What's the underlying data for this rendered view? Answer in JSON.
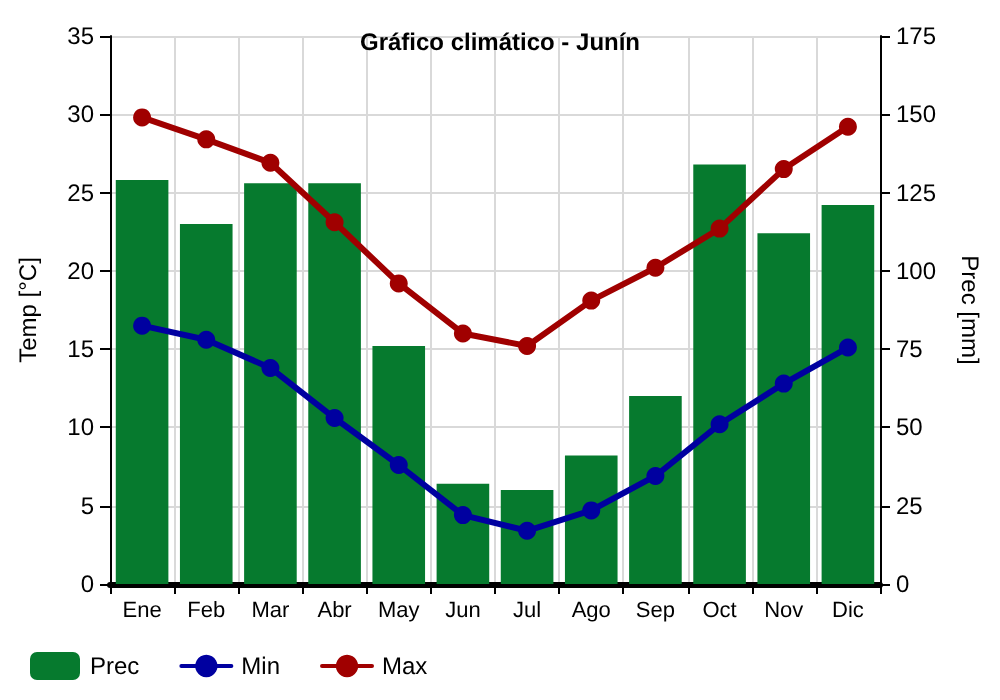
{
  "chart_data": {
    "type": "bar",
    "title": "Gráfico climático - Junín",
    "ylabel": "Temp [°C]",
    "y2label": "Prec [mm]",
    "categories": [
      "Ene",
      "Feb",
      "Mar",
      "Abr",
      "May",
      "Jun",
      "Jul",
      "Ago",
      "Sep",
      "Oct",
      "Nov",
      "Dic"
    ],
    "series": [
      {
        "name": "Prec",
        "axis": "y2",
        "color": "#067a2e",
        "values": [
          129,
          115,
          128,
          128,
          76,
          32,
          30,
          41,
          60,
          134,
          112,
          121
        ]
      },
      {
        "name": "Min",
        "type": "line",
        "color": "#0000a0",
        "values": [
          16.5,
          15.6,
          13.8,
          10.6,
          7.6,
          4.4,
          3.4,
          4.7,
          6.9,
          10.2,
          12.8,
          15.1
        ]
      },
      {
        "name": "Max",
        "type": "line",
        "color": "#a00000",
        "values": [
          29.8,
          28.4,
          26.9,
          23.1,
          19.2,
          16.0,
          15.2,
          18.1,
          20.2,
          22.7,
          26.5,
          29.2
        ]
      }
    ],
    "ylim": [
      0,
      35
    ],
    "yticks": [
      0,
      5,
      10,
      15,
      20,
      25,
      30,
      35
    ],
    "y2lim": [
      0,
      175
    ],
    "y2ticks": [
      0,
      25,
      50,
      75,
      100,
      125,
      150,
      175
    ],
    "grid": true,
    "legend": "bottom left",
    "marker": "circle",
    "line_style": "solid"
  }
}
